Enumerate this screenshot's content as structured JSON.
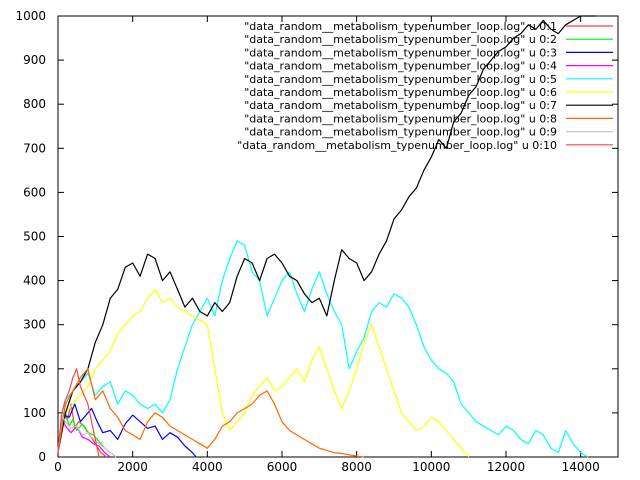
{
  "chart_data": {
    "type": "line",
    "title": "",
    "xlabel": "",
    "ylabel": "",
    "xlim": [
      0,
      15000
    ],
    "ylim": [
      0,
      1000
    ],
    "x_ticks": [
      0,
      2000,
      4000,
      6000,
      8000,
      10000,
      12000,
      14000
    ],
    "y_ticks": [
      0,
      100,
      200,
      300,
      400,
      500,
      600,
      700,
      800,
      900,
      1000
    ],
    "grid": false,
    "legend_position": "top-right",
    "series": [
      {
        "name": "\"data_random__metabolism_typenumber_loop.log\" u 0:1",
        "color": "#ff4040",
        "x": [
          0,
          80,
          150,
          250,
          350,
          450,
          550,
          700,
          850,
          1000,
          1150,
          1300
        ],
        "y": [
          10,
          75,
          95,
          85,
          120,
          65,
          80,
          70,
          50,
          30,
          10,
          0
        ]
      },
      {
        "name": "\"data_random__metabolism_typenumber_loop.log\" u 0:2",
        "color": "#00ee00",
        "x": [
          0,
          100,
          200,
          300,
          400,
          500,
          650,
          800,
          950,
          1100,
          1250,
          1400,
          1550
        ],
        "y": [
          10,
          90,
          100,
          70,
          85,
          60,
          75,
          55,
          50,
          35,
          20,
          10,
          0
        ]
      },
      {
        "name": "\"data_random__metabolism_typenumber_loop.log\" u 0:3",
        "color": "#0000ff",
        "x": [
          0,
          150,
          300,
          450,
          600,
          750,
          900,
          1050,
          1200,
          1400,
          1600,
          1800,
          2000,
          2200,
          2400,
          2600,
          2800,
          3000,
          3200,
          3400,
          3600,
          3700
        ],
        "y": [
          10,
          95,
          90,
          120,
          80,
          95,
          110,
          80,
          55,
          60,
          40,
          75,
          95,
          80,
          65,
          70,
          40,
          55,
          45,
          25,
          10,
          0
        ]
      },
      {
        "name": "\"data_random__metabolism_typenumber_loop.log\" u 0:4",
        "color": "#ff00ff",
        "x": [
          0,
          100,
          200,
          350,
          500,
          650,
          800,
          950,
          1100,
          1250,
          1400
        ],
        "y": [
          10,
          90,
          70,
          55,
          70,
          45,
          40,
          30,
          25,
          10,
          0
        ]
      },
      {
        "name": "\"data_random__metabolism_typenumber_loop.log\" u 0:5",
        "color": "#00ffff",
        "x": [
          0,
          200,
          400,
          600,
          800,
          1000,
          1200,
          1400,
          1600,
          1800,
          2000,
          2200,
          2400,
          2600,
          2800,
          3000,
          3200,
          3400,
          3600,
          3800,
          4000,
          4200,
          4400,
          4600,
          4800,
          5000,
          5200,
          5400,
          5600,
          5800,
          6000,
          6200,
          6400,
          6600,
          6800,
          7000,
          7200,
          7400,
          7600,
          7800,
          8000,
          8200,
          8400,
          8600,
          8800,
          9000,
          9200,
          9400,
          9600,
          9800,
          10000,
          10200,
          10400,
          10600,
          10800,
          11000,
          11200,
          11400,
          11600,
          11800,
          12000,
          12200,
          12400,
          12600,
          12800,
          13000,
          13200,
          13400,
          13600,
          13800,
          14000,
          14200
        ],
        "y": [
          10,
          130,
          150,
          170,
          190,
          140,
          160,
          170,
          120,
          150,
          140,
          120,
          110,
          120,
          100,
          130,
          200,
          250,
          300,
          330,
          360,
          320,
          400,
          450,
          490,
          480,
          420,
          400,
          320,
          360,
          400,
          420,
          370,
          330,
          380,
          420,
          370,
          330,
          300,
          200,
          240,
          270,
          330,
          350,
          340,
          370,
          360,
          340,
          300,
          250,
          220,
          200,
          190,
          170,
          120,
          100,
          80,
          70,
          60,
          50,
          70,
          60,
          40,
          30,
          60,
          50,
          20,
          10,
          60,
          30,
          10,
          0
        ]
      },
      {
        "name": "\"data_random__metabolism_typenumber_loop.log\" u 0:6",
        "color": "#ffff00",
        "x": [
          0,
          200,
          400,
          600,
          800,
          1000,
          1200,
          1400,
          1600,
          1800,
          2000,
          2200,
          2400,
          2600,
          2800,
          3000,
          3200,
          3400,
          3600,
          3800,
          4000,
          4200,
          4400,
          4600,
          4800,
          5000,
          5200,
          5400,
          5600,
          5800,
          6000,
          6200,
          6400,
          6600,
          6800,
          7000,
          7200,
          7400,
          7600,
          7800,
          8000,
          8200,
          8400,
          8600,
          8800,
          9000,
          9200,
          9400,
          9600,
          9800,
          10000,
          10200,
          10400,
          10600,
          10800,
          11000
        ],
        "y": [
          10,
          100,
          120,
          140,
          160,
          200,
          220,
          240,
          280,
          300,
          320,
          330,
          360,
          380,
          350,
          360,
          340,
          330,
          320,
          310,
          300,
          200,
          100,
          60,
          80,
          100,
          140,
          160,
          180,
          150,
          160,
          180,
          200,
          170,
          220,
          250,
          200,
          150,
          110,
          150,
          200,
          260,
          300,
          250,
          200,
          150,
          100,
          80,
          60,
          70,
          90,
          80,
          60,
          40,
          20,
          0
        ]
      },
      {
        "name": "\"data_random__metabolism_typenumber_loop.log\" u 0:7",
        "color": "#000000",
        "x": [
          0,
          200,
          400,
          600,
          800,
          1000,
          1200,
          1400,
          1600,
          1800,
          2000,
          2200,
          2400,
          2600,
          2800,
          3000,
          3200,
          3400,
          3600,
          3800,
          4000,
          4200,
          4400,
          4600,
          4800,
          5000,
          5200,
          5400,
          5600,
          5800,
          6000,
          6200,
          6400,
          6600,
          6800,
          7000,
          7200,
          7400,
          7600,
          7800,
          8000,
          8200,
          8400,
          8600,
          8800,
          9000,
          9200,
          9400,
          9600,
          9800,
          10000,
          10200,
          10400,
          10600,
          10800,
          11000,
          11200,
          11400,
          11600,
          11800,
          12000,
          12200,
          12400,
          12600,
          12800,
          13000,
          13200,
          13400,
          13600,
          13800,
          14000,
          14200,
          14400
        ],
        "y": [
          10,
          100,
          150,
          170,
          200,
          260,
          300,
          360,
          380,
          430,
          440,
          410,
          460,
          450,
          400,
          420,
          380,
          340,
          360,
          330,
          320,
          350,
          330,
          350,
          410,
          450,
          440,
          400,
          450,
          460,
          440,
          410,
          400,
          370,
          350,
          360,
          320,
          400,
          470,
          450,
          440,
          400,
          420,
          460,
          490,
          540,
          560,
          590,
          610,
          650,
          680,
          720,
          700,
          760,
          780,
          820,
          840,
          880,
          900,
          920,
          930,
          950,
          960,
          980,
          970,
          990,
          970,
          960,
          980,
          990,
          1000,
          1000,
          1000
        ]
      },
      {
        "name": "\"data_random__metabolism_typenumber_loop.log\" u 0:8",
        "color": "#ff6600",
        "x": [
          0,
          200,
          400,
          600,
          800,
          1000,
          1200,
          1400,
          1600,
          1800,
          2000,
          2200,
          2400,
          2600,
          2800,
          3000,
          3200,
          3400,
          3600,
          3800,
          4000,
          4200,
          4400,
          4600,
          4800,
          5000,
          5200,
          5400,
          5600,
          5800,
          6000,
          6200,
          6400,
          6600,
          6800,
          7000,
          7200,
          7400,
          7600,
          7800,
          8000,
          8200
        ],
        "y": [
          10,
          120,
          150,
          180,
          200,
          130,
          150,
          110,
          90,
          60,
          50,
          40,
          80,
          100,
          90,
          70,
          60,
          50,
          40,
          30,
          20,
          40,
          70,
          80,
          100,
          110,
          120,
          140,
          150,
          120,
          80,
          60,
          50,
          40,
          30,
          20,
          15,
          10,
          8,
          5,
          2,
          0
        ]
      },
      {
        "name": "\"data_random__metabolism_typenumber_loop.log\" u 0:9",
        "color": "#c8c8c8",
        "x": [
          0,
          100,
          200,
          350,
          500,
          650,
          800,
          950,
          1100,
          1250,
          1400,
          1550
        ],
        "y": [
          10,
          95,
          80,
          65,
          70,
          50,
          55,
          40,
          30,
          20,
          10,
          0
        ]
      },
      {
        "name": "\"data_random__metabolism_typenumber_loop.log\" u 0:10",
        "color": "#ff4444",
        "x": [
          0,
          100,
          200,
          300,
          400,
          500,
          600,
          700,
          800,
          900,
          1000,
          1100
        ],
        "y": [
          10,
          100,
          130,
          150,
          180,
          200,
          160,
          140,
          120,
          80,
          40,
          0
        ]
      }
    ]
  }
}
